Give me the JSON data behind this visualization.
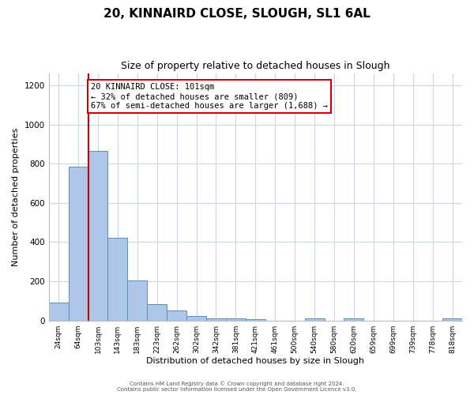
{
  "title": "20, KINNAIRD CLOSE, SLOUGH, SL1 6AL",
  "subtitle": "Size of property relative to detached houses in Slough",
  "xlabel": "Distribution of detached houses by size in Slough",
  "ylabel": "Number of detached properties",
  "bar_labels": [
    "24sqm",
    "64sqm",
    "103sqm",
    "143sqm",
    "183sqm",
    "223sqm",
    "262sqm",
    "302sqm",
    "342sqm",
    "381sqm",
    "421sqm",
    "461sqm",
    "500sqm",
    "540sqm",
    "580sqm",
    "620sqm",
    "659sqm",
    "699sqm",
    "739sqm",
    "778sqm",
    "818sqm"
  ],
  "bar_heights": [
    90,
    785,
    865,
    420,
    205,
    85,
    52,
    22,
    10,
    10,
    5,
    0,
    0,
    10,
    0,
    10,
    0,
    0,
    0,
    0,
    10
  ],
  "bar_color": "#aec6e8",
  "bar_edge_color": "#5a8fc2",
  "property_line_index": 2,
  "property_line_color": "#cc0000",
  "annotation_line1": "20 KINNAIRD CLOSE: 101sqm",
  "annotation_line2": "← 32% of detached houses are smaller (809)",
  "annotation_line3": "67% of semi-detached houses are larger (1,688) →",
  "annotation_box_color": "#cc0000",
  "ylim": [
    0,
    1260
  ],
  "yticks": [
    0,
    200,
    400,
    600,
    800,
    1000,
    1200
  ],
  "footer_line1": "Contains HM Land Registry data © Crown copyright and database right 2024.",
  "footer_line2": "Contains public sector information licensed under the Open Government Licence v3.0.",
  "background_color": "#ffffff",
  "grid_color": "#c8d8e8",
  "title_fontsize": 11,
  "subtitle_fontsize": 9,
  "annotation_fontsize": 7.5,
  "xlabel_fontsize": 8,
  "ylabel_fontsize": 8,
  "tick_fontsize": 6.5,
  "ytick_fontsize": 7.5
}
